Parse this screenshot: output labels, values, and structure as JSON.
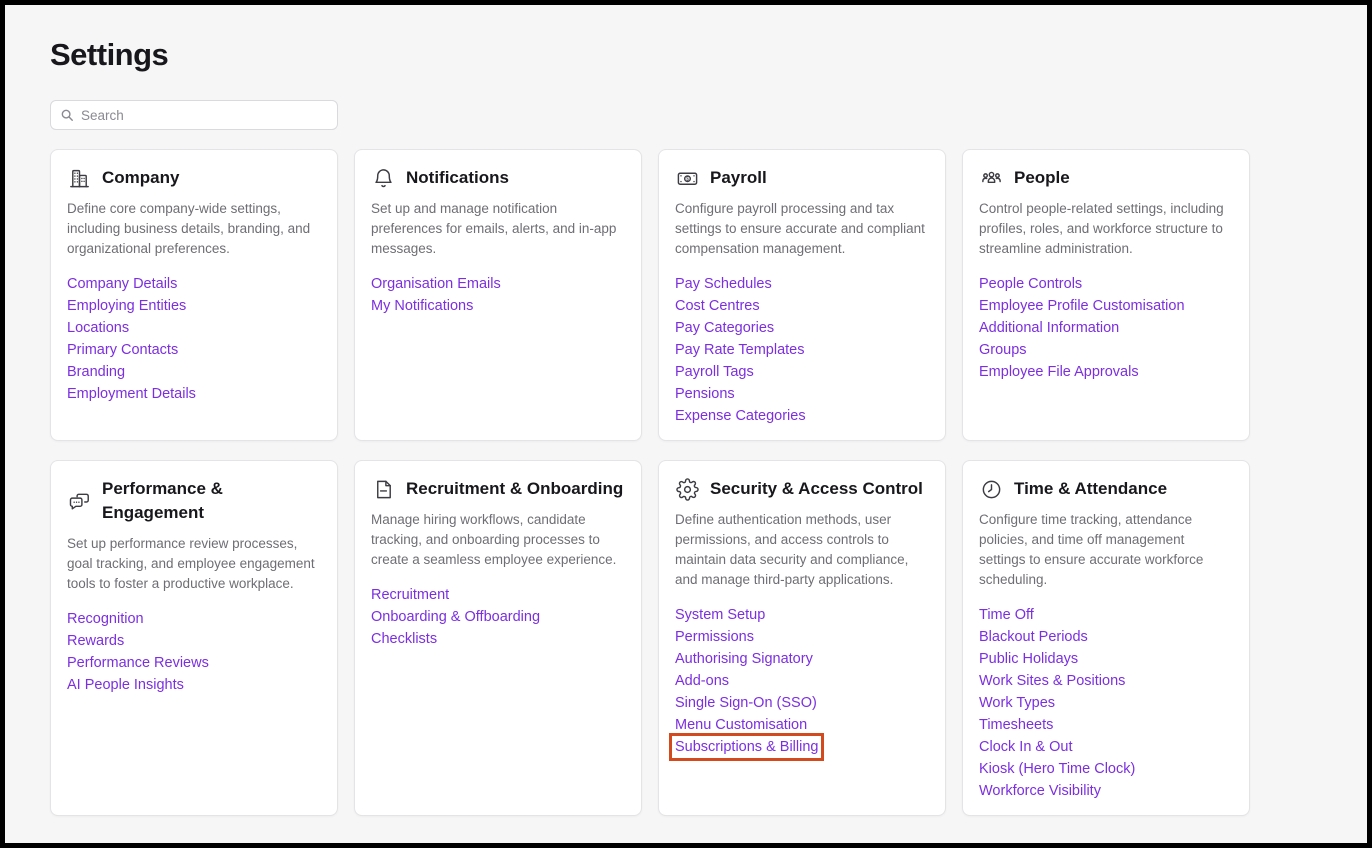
{
  "page": {
    "title": "Settings"
  },
  "search": {
    "placeholder": "Search",
    "value": "",
    "icon": "search-icon"
  },
  "colors": {
    "link": "#7C2FE0",
    "highlight": "#D34A1E",
    "page_bg": "#F6F6F7",
    "card_bg": "#FFFFFF",
    "title_text": "#18181C",
    "body_text": "#6E6E74",
    "card_border": "#E4E4E7",
    "frame_border": "#000000"
  },
  "cards": [
    {
      "title": "Company",
      "icon": "building-icon",
      "description": "Define core company-wide settings, including business details, branding, and organizational preferences.",
      "links": [
        "Company Details",
        "Employing Entities",
        "Locations",
        "Primary Contacts",
        "Branding",
        "Employment Details"
      ]
    },
    {
      "title": "Notifications",
      "icon": "bell-icon",
      "description": "Set up and manage notification preferences for emails, alerts, and in-app messages.",
      "links": [
        "Organisation Emails",
        "My Notifications"
      ]
    },
    {
      "title": "Payroll",
      "icon": "banknote-icon",
      "description": "Configure payroll processing and tax settings to ensure accurate and compliant compensation management.",
      "links": [
        "Pay Schedules",
        "Cost Centres",
        "Pay Categories",
        "Pay Rate Templates",
        "Payroll Tags",
        "Pensions",
        "Expense Categories"
      ]
    },
    {
      "title": "People",
      "icon": "people-icon",
      "description": "Control people-related settings, including profiles, roles, and workforce structure to streamline administration.",
      "links": [
        "People Controls",
        "Employee Profile Customisation",
        "Additional Information",
        "Groups",
        "Employee File Approvals"
      ]
    },
    {
      "title": "Performance & Engagement",
      "icon": "chat-bubbles-icon",
      "description": "Set up performance review processes, goal tracking, and employee engagement tools to foster a productive workplace.",
      "links": [
        "Recognition",
        "Rewards",
        "Performance Reviews",
        "AI People Insights"
      ]
    },
    {
      "title": "Recruitment & Onboarding",
      "icon": "document-icon",
      "description": "Manage hiring workflows, candidate tracking, and onboarding processes to create a seamless employee experience.",
      "links": [
        "Recruitment",
        "Onboarding & Offboarding",
        "Checklists"
      ]
    },
    {
      "title": "Security & Access Control",
      "icon": "gear-icon",
      "description": "Define authentication methods, user permissions, and access controls to maintain data security and compliance, and manage third-party applications.",
      "links": [
        "System Setup",
        "Permissions",
        "Authorising Signatory",
        "Add-ons",
        "Single Sign-On (SSO)",
        "Menu Customisation",
        "Subscriptions & Billing"
      ],
      "highlighted_link": "Subscriptions & Billing"
    },
    {
      "title": "Time & Attendance",
      "icon": "clock-icon",
      "description": "Configure time tracking, attendance policies, and time off management settings to ensure accurate workforce scheduling.",
      "links": [
        "Time Off",
        "Blackout Periods",
        "Public Holidays",
        "Work Sites & Positions",
        "Work Types",
        "Timesheets",
        "Clock In & Out",
        "Kiosk (Hero Time Clock)",
        "Workforce Visibility"
      ]
    }
  ]
}
